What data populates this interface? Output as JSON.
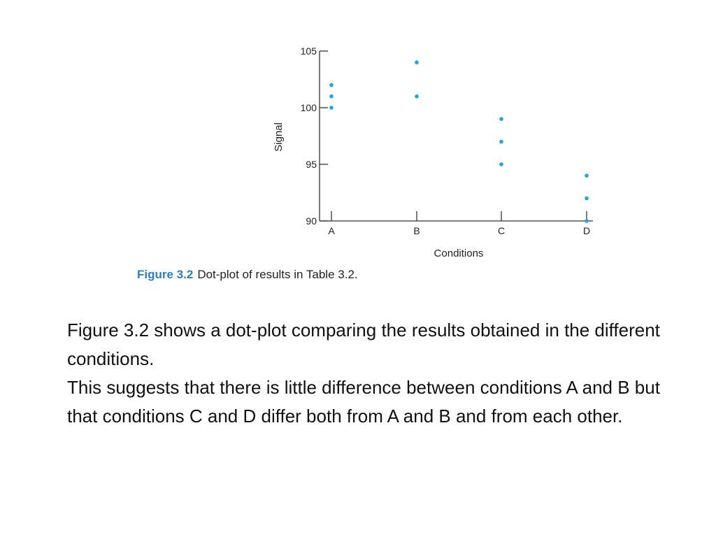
{
  "chart_data": {
    "type": "scatter",
    "categories": [
      "A",
      "B",
      "C",
      "D"
    ],
    "xlabel": "Conditions",
    "ylabel": "Signal",
    "ylim": [
      90,
      105
    ],
    "yticks": [
      90,
      95,
      100,
      105
    ],
    "point_color": "#1fa6dc",
    "points": [
      {
        "x": "A",
        "y": 102
      },
      {
        "x": "A",
        "y": 101
      },
      {
        "x": "A",
        "y": 100
      },
      {
        "x": "B",
        "y": 104
      },
      {
        "x": "B",
        "y": 101
      },
      {
        "x": "C",
        "y": 99
      },
      {
        "x": "C",
        "y": 97
      },
      {
        "x": "C",
        "y": 95
      },
      {
        "x": "D",
        "y": 94
      },
      {
        "x": "D",
        "y": 92
      },
      {
        "x": "D",
        "y": 90
      }
    ]
  },
  "caption": {
    "label": "Figure 3.2",
    "text": "Dot-plot of results in Table 3.2."
  },
  "body": {
    "paragraph1": "Figure 3.2 shows a dot-plot comparing the results obtained in the different conditions.",
    "paragraph2": "This suggests that there is little difference between conditions A and B but that conditions C and D differ both from A and B and from each other."
  }
}
